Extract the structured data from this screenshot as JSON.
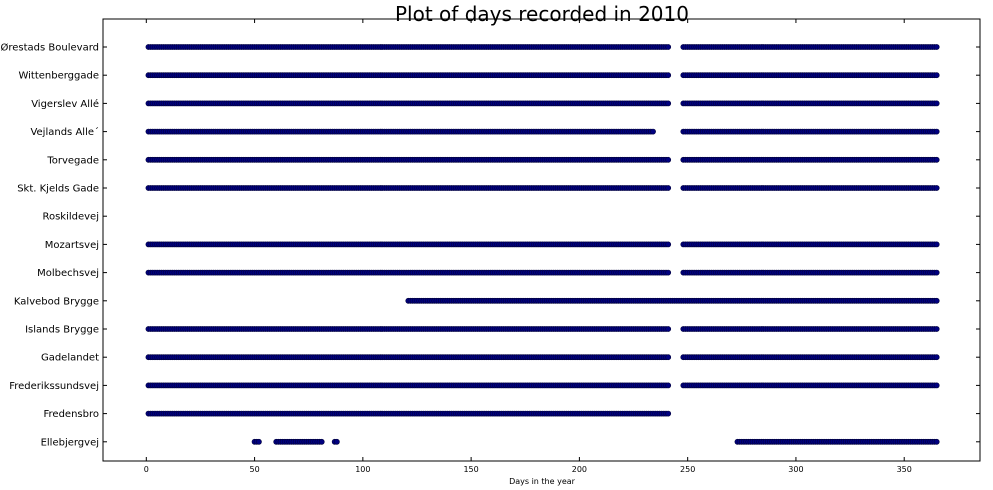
{
  "chart_data": {
    "type": "scatter",
    "title": "Plot of days recorded in 2010",
    "xlabel": "Days in the year",
    "ylabel": "",
    "xlim": [
      -20,
      385
    ],
    "x_ticks": [
      0,
      50,
      100,
      150,
      200,
      250,
      300,
      350
    ],
    "grid": false,
    "marker_color": "#000080",
    "categories": [
      "Ørestads Boulevard",
      "Wittenberggade",
      "Vigerslev Allé",
      "Vejlands Alle´",
      "Torvegade",
      "Skt. Kjelds Gade",
      "Roskildevej",
      "Mozartsvej",
      "Molbechsvej",
      "Kalvebod Brygge",
      "Islands Brygge",
      "Gadelandet",
      "Frederikssundsvej",
      "Fredensbro",
      "Ellebjergvej"
    ],
    "series": [
      {
        "category": "Ørestads Boulevard",
        "day_ranges": [
          [
            1,
            241
          ],
          [
            248,
            365
          ]
        ]
      },
      {
        "category": "Wittenberggade",
        "day_ranges": [
          [
            1,
            241
          ],
          [
            248,
            365
          ]
        ]
      },
      {
        "category": "Vigerslev Allé",
        "day_ranges": [
          [
            1,
            241
          ],
          [
            248,
            365
          ]
        ]
      },
      {
        "category": "Vejlands Alle´",
        "day_ranges": [
          [
            1,
            234
          ],
          [
            248,
            365
          ]
        ]
      },
      {
        "category": "Torvegade",
        "day_ranges": [
          [
            1,
            241
          ],
          [
            248,
            365
          ]
        ]
      },
      {
        "category": "Skt. Kjelds Gade",
        "day_ranges": [
          [
            1,
            241
          ],
          [
            248,
            365
          ]
        ]
      },
      {
        "category": "Roskildevej",
        "day_ranges": []
      },
      {
        "category": "Mozartsvej",
        "day_ranges": [
          [
            1,
            241
          ],
          [
            248,
            365
          ]
        ]
      },
      {
        "category": "Molbechsvej",
        "day_ranges": [
          [
            1,
            241
          ],
          [
            248,
            365
          ]
        ]
      },
      {
        "category": "Kalvebod Brygge",
        "day_ranges": [
          [
            121,
            365
          ]
        ]
      },
      {
        "category": "Islands Brygge",
        "day_ranges": [
          [
            1,
            241
          ],
          [
            248,
            365
          ]
        ]
      },
      {
        "category": "Gadelandet",
        "day_ranges": [
          [
            1,
            241
          ],
          [
            248,
            365
          ]
        ]
      },
      {
        "category": "Frederikssundsvej",
        "day_ranges": [
          [
            1,
            241
          ],
          [
            248,
            365
          ]
        ]
      },
      {
        "category": "Fredensbro",
        "day_ranges": [
          [
            1,
            241
          ]
        ]
      },
      {
        "category": "Ellebjergvej",
        "day_ranges": [
          [
            50,
            52
          ],
          [
            60,
            81
          ],
          [
            87,
            88
          ],
          [
            273,
            365
          ]
        ]
      }
    ]
  }
}
